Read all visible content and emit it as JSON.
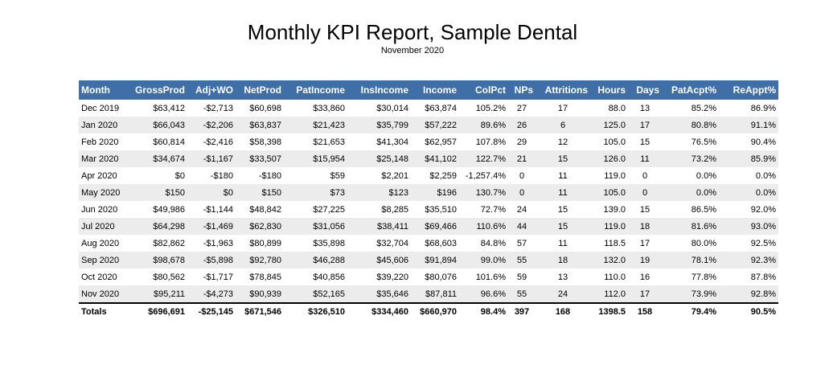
{
  "report": {
    "title": "Monthly KPI Report, Sample Dental",
    "subtitle": "November 2020"
  },
  "colors": {
    "header_background": "#3f6fa6",
    "header_text": "#ffffff",
    "stripe": "#ececec",
    "text": "#000000"
  },
  "table": {
    "columns": [
      "Month",
      "GrossProd",
      "Adj+WO",
      "NetProd",
      "PatIncome",
      "InsIncome",
      "Income",
      "ColPct",
      "NPs",
      "Attritions",
      "Hours",
      "Days",
      "PatAcpt%",
      "ReAppt%"
    ],
    "rows": [
      [
        "Dec 2019",
        "$63,412",
        "-$2,713",
        "$60,698",
        "$33,860",
        "$30,014",
        "$63,874",
        "105.2%",
        "27",
        "17",
        "88.0",
        "13",
        "85.2%",
        "86.9%"
      ],
      [
        "Jan 2020",
        "$66,043",
        "-$2,206",
        "$63,837",
        "$21,423",
        "$35,799",
        "$57,222",
        "89.6%",
        "26",
        "6",
        "125.0",
        "17",
        "80.8%",
        "91.1%"
      ],
      [
        "Feb 2020",
        "$60,814",
        "-$2,416",
        "$58,398",
        "$21,653",
        "$41,304",
        "$62,957",
        "107.8%",
        "29",
        "12",
        "105.0",
        "15",
        "76.5%",
        "90.4%"
      ],
      [
        "Mar 2020",
        "$34,674",
        "-$1,167",
        "$33,507",
        "$15,954",
        "$25,148",
        "$41,102",
        "122.7%",
        "21",
        "15",
        "126.0",
        "11",
        "73.2%",
        "85.9%"
      ],
      [
        "Apr 2020",
        "$0",
        "-$180",
        "-$180",
        "$59",
        "$2,201",
        "$2,259",
        "-1,257.4%",
        "0",
        "11",
        "119.0",
        "0",
        "0.0%",
        "0.0%"
      ],
      [
        "May 2020",
        "$150",
        "$0",
        "$150",
        "$73",
        "$123",
        "$196",
        "130.7%",
        "0",
        "11",
        "105.0",
        "0",
        "0.0%",
        "0.0%"
      ],
      [
        "Jun 2020",
        "$49,986",
        "-$1,144",
        "$48,842",
        "$27,225",
        "$8,285",
        "$35,510",
        "72.7%",
        "24",
        "15",
        "139.0",
        "15",
        "86.5%",
        "92.0%"
      ],
      [
        "Jul 2020",
        "$64,298",
        "-$1,469",
        "$62,830",
        "$31,056",
        "$38,411",
        "$69,466",
        "110.6%",
        "44",
        "15",
        "119.0",
        "18",
        "81.6%",
        "93.0%"
      ],
      [
        "Aug 2020",
        "$82,862",
        "-$1,963",
        "$80,899",
        "$35,898",
        "$32,704",
        "$68,603",
        "84.8%",
        "57",
        "11",
        "118.5",
        "17",
        "80.0%",
        "92.5%"
      ],
      [
        "Sep 2020",
        "$98,678",
        "-$5,898",
        "$92,780",
        "$46,288",
        "$45,606",
        "$91,894",
        "99.0%",
        "55",
        "18",
        "132.0",
        "19",
        "78.1%",
        "92.3%"
      ],
      [
        "Oct 2020",
        "$80,562",
        "-$1,717",
        "$78,845",
        "$40,856",
        "$39,220",
        "$80,076",
        "101.6%",
        "59",
        "13",
        "110.0",
        "16",
        "77.8%",
        "87.8%"
      ],
      [
        "Nov 2020",
        "$95,211",
        "-$4,273",
        "$90,939",
        "$52,165",
        "$35,646",
        "$87,811",
        "96.6%",
        "55",
        "24",
        "112.0",
        "17",
        "73.9%",
        "92.8%"
      ]
    ],
    "totals": [
      "Totals",
      "$696,691",
      "-$25,145",
      "$671,546",
      "$326,510",
      "$334,460",
      "$660,970",
      "98.4%",
      "397",
      "168",
      "1398.5",
      "158",
      "79.4%",
      "90.5%"
    ]
  }
}
